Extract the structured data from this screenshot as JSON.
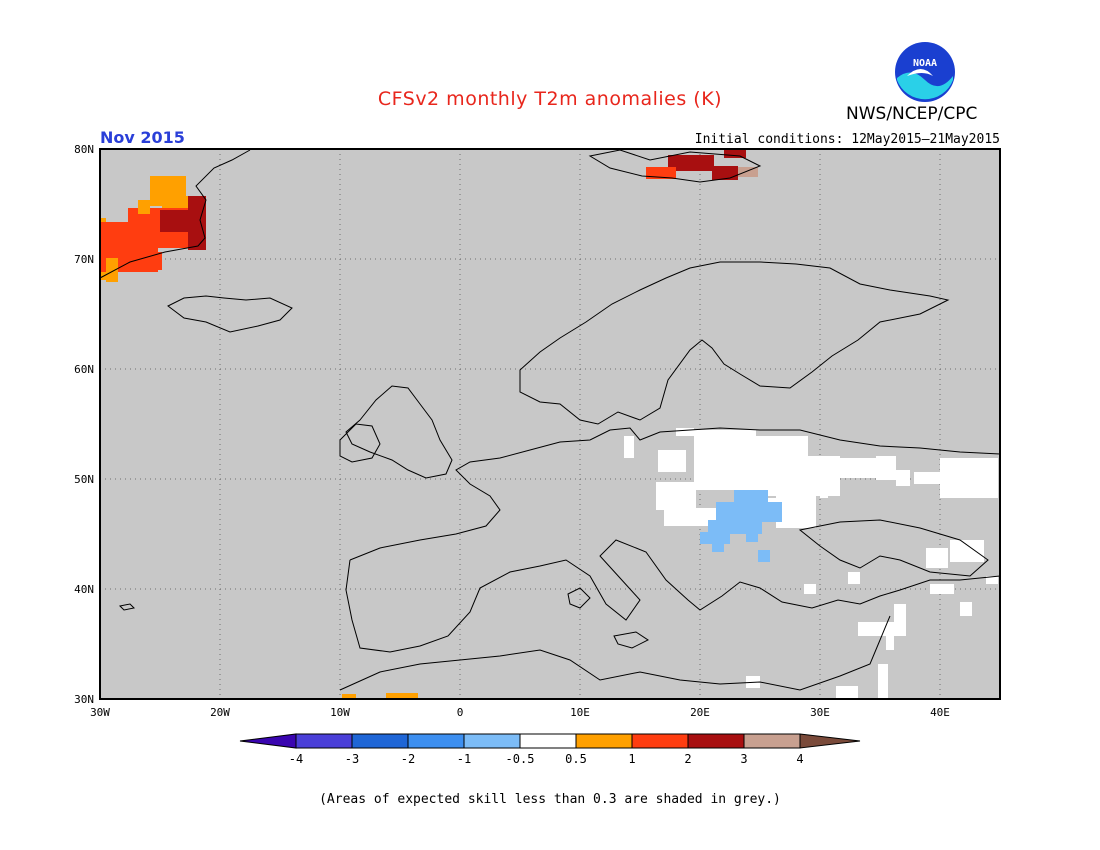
{
  "header": {
    "title": "CFSv2 monthly T2m anomalies (K)",
    "agency": "NWS/NCEP/CPC",
    "month": "Nov 2015",
    "initial_conditions": "Initial conditions: 12May2015–21May2015",
    "logo_text": "NOAA"
  },
  "map": {
    "lat_labels": [
      "80N",
      "70N",
      "60N",
      "50N",
      "40N",
      "30N"
    ],
    "lon_labels": [
      "30W",
      "20W",
      "10W",
      "0",
      "10E",
      "20E",
      "30E",
      "40E"
    ],
    "land_grey_color": "#c8c8c8",
    "lat_range": [
      30,
      80
    ],
    "lon_range": [
      -30,
      45
    ]
  },
  "colorbar": {
    "tick_labels": [
      "-4",
      "-3",
      "-2",
      "-1",
      "-0.5",
      "0.5",
      "1",
      "2",
      "3",
      "4"
    ],
    "colors": [
      "#3a05b0",
      "#4a3fd8",
      "#1f66d6",
      "#3d8ff0",
      "#7cbcf7",
      "#ffffff",
      "#ffa000",
      "#ff3d10",
      "#a80f10",
      "#c8a090",
      "#7a4a3a"
    ]
  },
  "footnote": "(Areas of expected skill less than 0.3 are shaded in grey.)"
}
